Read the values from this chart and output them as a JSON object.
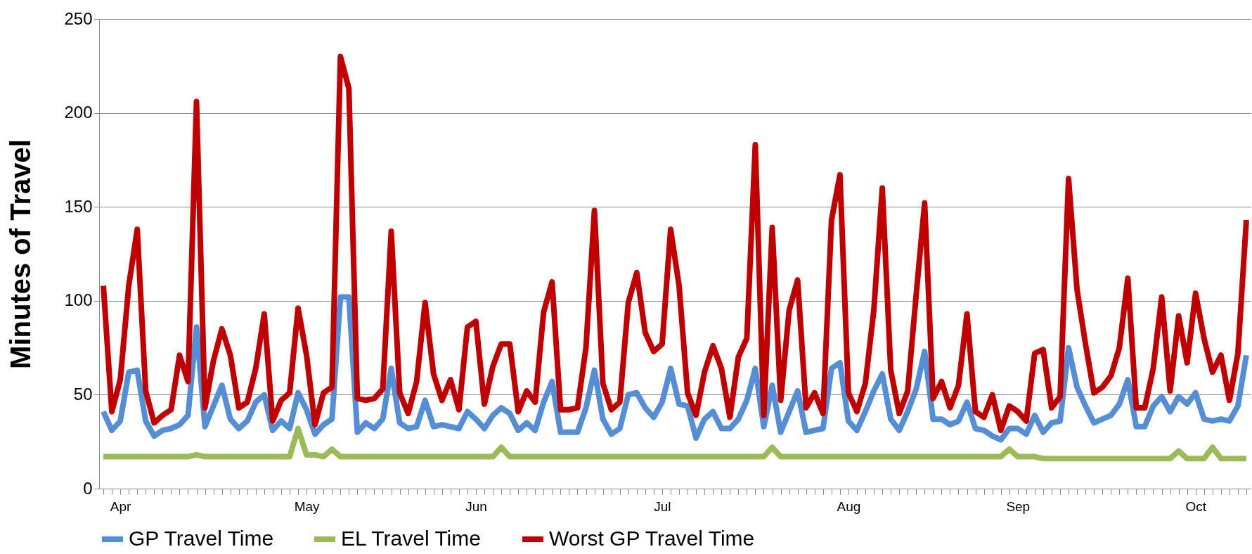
{
  "chart_data": {
    "type": "line",
    "ylabel": "Minutes of Travel",
    "categories": [
      null,
      null,
      "Apr",
      null,
      null,
      null,
      null,
      null,
      null,
      null,
      null,
      null,
      null,
      null,
      null,
      null,
      null,
      null,
      null,
      null,
      null,
      null,
      null,
      null,
      "May",
      null,
      null,
      null,
      null,
      null,
      null,
      null,
      null,
      null,
      null,
      null,
      null,
      null,
      null,
      null,
      null,
      null,
      null,
      null,
      "Jun",
      null,
      null,
      null,
      null,
      null,
      null,
      null,
      null,
      null,
      null,
      null,
      null,
      null,
      null,
      null,
      null,
      null,
      null,
      null,
      null,
      null,
      "Jul",
      null,
      null,
      null,
      null,
      null,
      null,
      null,
      null,
      null,
      null,
      null,
      null,
      null,
      null,
      null,
      null,
      null,
      null,
      null,
      null,
      null,
      "Aug",
      null,
      null,
      null,
      null,
      null,
      null,
      null,
      null,
      null,
      null,
      null,
      null,
      null,
      null,
      null,
      null,
      null,
      null,
      null,
      "Sep",
      null,
      null,
      null,
      null,
      null,
      null,
      null,
      null,
      null,
      null,
      null,
      null,
      null,
      null,
      null,
      null,
      null,
      null,
      null,
      null,
      "Oct",
      null,
      null,
      null,
      null,
      null,
      null
    ],
    "series": [
      {
        "name": "GP Travel Time",
        "color": "#558ed5",
        "values": [
          41,
          31,
          36,
          62,
          63,
          36,
          28,
          31,
          32,
          34,
          39,
          86,
          33,
          44,
          55,
          37,
          32,
          36,
          46,
          50,
          31,
          36,
          32,
          51,
          42,
          29,
          34,
          37,
          102,
          102,
          30,
          35,
          32,
          37,
          64,
          35,
          32,
          33,
          47,
          33,
          34,
          33,
          32,
          41,
          37,
          32,
          39,
          43,
          40,
          31,
          35,
          31,
          46,
          57,
          30,
          30,
          30,
          43,
          63,
          37,
          29,
          32,
          50,
          51,
          43,
          38,
          46,
          64,
          45,
          44,
          27,
          37,
          41,
          32,
          32,
          37,
          47,
          64,
          33,
          55,
          30,
          41,
          52,
          30,
          31,
          32,
          64,
          67,
          36,
          31,
          41,
          52,
          61,
          37,
          31,
          41,
          53,
          73,
          37,
          37,
          34,
          36,
          46,
          32,
          31,
          28,
          26,
          32,
          32,
          29,
          39,
          30,
          35,
          36,
          75,
          54,
          44,
          35,
          37,
          39,
          45,
          58,
          33,
          33,
          44,
          49,
          41,
          49,
          45,
          51,
          37,
          36,
          37,
          36,
          44,
          71
        ]
      },
      {
        "name": "EL Travel Time",
        "color": "#9bbb59",
        "values": [
          17,
          17,
          17,
          17,
          17,
          17,
          17,
          17,
          17,
          17,
          17,
          18,
          17,
          17,
          17,
          17,
          17,
          17,
          17,
          17,
          17,
          17,
          17,
          32,
          18,
          18,
          17,
          21,
          17,
          17,
          17,
          17,
          17,
          17,
          17,
          17,
          17,
          17,
          17,
          17,
          17,
          17,
          17,
          17,
          17,
          17,
          17,
          22,
          17,
          17,
          17,
          17,
          17,
          17,
          17,
          17,
          17,
          17,
          17,
          17,
          17,
          17,
          17,
          17,
          17,
          17,
          17,
          17,
          17,
          17,
          17,
          17,
          17,
          17,
          17,
          17,
          17,
          17,
          17,
          22,
          17,
          17,
          17,
          17,
          17,
          17,
          17,
          17,
          17,
          17,
          17,
          17,
          17,
          17,
          17,
          17,
          17,
          17,
          17,
          17,
          17,
          17,
          17,
          17,
          17,
          17,
          17,
          21,
          17,
          17,
          17,
          16,
          16,
          16,
          16,
          16,
          16,
          16,
          16,
          16,
          16,
          16,
          16,
          16,
          16,
          16,
          16,
          20,
          16,
          16,
          16,
          22,
          16,
          16,
          16,
          16
        ]
      },
      {
        "name": "Worst GP Travel Time",
        "color": "#c00000",
        "values": [
          108,
          41,
          58,
          108,
          138,
          52,
          35,
          39,
          42,
          71,
          57,
          206,
          43,
          68,
          85,
          71,
          43,
          46,
          64,
          93,
          36,
          47,
          51,
          96,
          71,
          34,
          51,
          54,
          230,
          213,
          48,
          47,
          48,
          53,
          137,
          51,
          40,
          57,
          99,
          61,
          47,
          58,
          42,
          86,
          89,
          45,
          65,
          77,
          77,
          41,
          52,
          46,
          94,
          110,
          42,
          42,
          43,
          75,
          148,
          56,
          42,
          46,
          99,
          115,
          83,
          73,
          77,
          138,
          108,
          51,
          39,
          62,
          76,
          64,
          38,
          70,
          80,
          183,
          39,
          139,
          47,
          95,
          111,
          43,
          51,
          40,
          143,
          167,
          51,
          41,
          56,
          95,
          160,
          63,
          40,
          52,
          103,
          152,
          48,
          57,
          43,
          55,
          93,
          41,
          38,
          50,
          31,
          44,
          41,
          36,
          72,
          74,
          43,
          49,
          165,
          106,
          77,
          51,
          54,
          60,
          75,
          112,
          43,
          43,
          64,
          102,
          52,
          92,
          67,
          104,
          80,
          62,
          71,
          47,
          72,
          143
        ]
      }
    ],
    "ylim": [
      0,
      250
    ],
    "yticks": [
      0,
      50,
      100,
      150,
      200,
      250
    ],
    "grid": "y",
    "legend": "bottom",
    "marker": "none",
    "line_style": "solid"
  }
}
